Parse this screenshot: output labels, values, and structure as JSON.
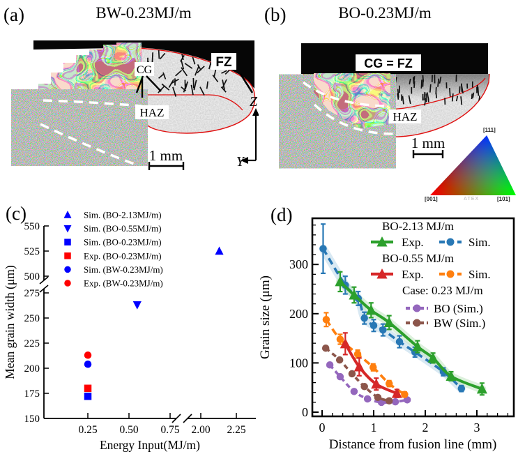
{
  "panel_a": {
    "label": "(a)",
    "title": "BW-0.23MJ/m",
    "cg": "CG",
    "fz": "FZ",
    "haz": "HAZ",
    "scale": "1 mm",
    "axis_z": "Z",
    "axis_y": "Y"
  },
  "panel_b": {
    "label": "(b)",
    "title": "BO-0.23MJ/m",
    "cg_fz": "CG = FZ",
    "haz": "HAZ",
    "scale": "1 mm",
    "ipf": {
      "top": "[111]",
      "bottom_left": "[001]",
      "bottom_right": "[101]",
      "watermark": "ATEX"
    }
  },
  "panel_c": {
    "label": "(c)"
  },
  "panel_d": {
    "label": "(d)"
  },
  "colors": {
    "sim_blue": "#0000ff",
    "exp_red": "#ff0000",
    "d_green": "#2ca02c",
    "d_blue": "#2878b5",
    "d_red": "#d62728",
    "d_orange": "#ff7f0e",
    "d_purple": "#9467bd",
    "d_brown": "#8c564b"
  },
  "chart_data": [
    {
      "type": "scatter",
      "title": "",
      "xlabel": "Energy Input(MJ/m)",
      "ylabel": "Mean grain width (μm)",
      "x_ticks": [
        0.25,
        0.5,
        0.75,
        2.0,
        2.25
      ],
      "x_tick_labels": [
        "0.25",
        "0.50",
        "0.75",
        "2.00",
        "2.25"
      ],
      "y_ticks": [
        150,
        175,
        200,
        225,
        250,
        275,
        500,
        525,
        550
      ],
      "axis_break_x": [
        0.75,
        2.0
      ],
      "axis_break_y": [
        275,
        500
      ],
      "grid": false,
      "legend_position": "upper-left",
      "series": [
        {
          "label": "Sim. (BO-2.13MJ/m)",
          "marker": "triangle-up",
          "color": "#0000ff",
          "x": 2.13,
          "y": 525
        },
        {
          "label": "Sim. (BO-0.55MJ/m)",
          "marker": "triangle-down",
          "color": "#0000ff",
          "x": 0.55,
          "y": 263
        },
        {
          "label": "Sim. (BO-0.23MJ/m)",
          "marker": "square",
          "color": "#0000ff",
          "x": 0.25,
          "y": 172
        },
        {
          "label": "Exp. (BO-0.23MJ/m)",
          "marker": "square",
          "color": "#ff0000",
          "x": 0.25,
          "y": 180
        },
        {
          "label": "Sim. (BW-0.23MJ/m)",
          "marker": "circle",
          "color": "#0000ff",
          "x": 0.25,
          "y": 204
        },
        {
          "label": "Exp. (BW-0.23MJ/m)",
          "marker": "circle",
          "color": "#ff0000",
          "x": 0.25,
          "y": 213
        }
      ]
    },
    {
      "type": "line",
      "title": "",
      "xlabel": "Distance from fusion line (mm)",
      "ylabel": "Grain size (μm)",
      "x_ticks": [
        0,
        1,
        2,
        3
      ],
      "y_ticks": [
        0,
        100,
        200,
        300
      ],
      "xlim": [
        -0.25,
        3.6
      ],
      "ylim": [
        0,
        395
      ],
      "grid": false,
      "legend_position": "upper-right",
      "legend_groups": [
        {
          "heading": "BO-2.13 MJ/m",
          "entries": [
            {
              "label": "Exp.",
              "series": "exp213"
            },
            {
              "label": "Sim.",
              "series": "sim213"
            }
          ]
        },
        {
          "heading": "BO-0.55 MJ/m",
          "entries": [
            {
              "label": "Exp.",
              "series": "exp055"
            },
            {
              "label": "Sim.",
              "series": "sim055"
            }
          ]
        },
        {
          "heading": "Case: 0.23 MJ/m",
          "entries": [
            {
              "label": "BO (Sim.)",
              "series": "bo023"
            },
            {
              "label": "BW (Sim.)",
              "series": "bw023"
            }
          ]
        }
      ],
      "series": [
        {
          "id": "bo023",
          "name": "BO (Sim.) 0.23 MJ/m",
          "color": "#9467bd",
          "style": "short-dash",
          "marker": "circle",
          "x": [
            0.15,
            0.35,
            0.62,
            0.88,
            1.15,
            1.42,
            1.65
          ],
          "y": [
            96,
            72,
            42,
            27,
            20,
            21,
            25
          ],
          "yerr": null,
          "band": null
        },
        {
          "id": "bw023",
          "name": "BW (Sim.) 0.23 MJ/m",
          "color": "#8c564b",
          "style": "short-dash",
          "marker": "circle",
          "x": [
            0.07,
            0.34,
            0.58,
            0.82,
            1.08,
            1.3
          ],
          "y": [
            130,
            106,
            78,
            52,
            30,
            23
          ],
          "yerr": null,
          "band": null
        },
        {
          "id": "sim055",
          "name": "Sim. BO-0.55 MJ/m",
          "color": "#ff7f0e",
          "style": "dashed",
          "marker": "circle",
          "x": [
            0.08,
            0.35,
            0.69,
            0.99,
            1.3,
            1.6
          ],
          "y": [
            188,
            148,
            118,
            91,
            58,
            36
          ],
          "yerr": [
            14,
            10,
            8,
            7,
            6,
            5
          ],
          "band": null
        },
        {
          "id": "exp055",
          "name": "Exp. BO-0.55 MJ/m",
          "color": "#d62728",
          "style": "solid",
          "marker": "triangle-up",
          "x": [
            0.45,
            0.72,
            1.05,
            1.45
          ],
          "y": [
            139,
            92,
            57,
            38
          ],
          "yerr": [
            22,
            18,
            12,
            8
          ],
          "band": null
        },
        {
          "id": "sim213",
          "name": "Sim. BO-2.13 MJ/m",
          "color": "#2878b5",
          "style": "dashed",
          "marker": "circle",
          "x": [
            0.02,
            0.45,
            0.7,
            0.82,
            1.0,
            1.18,
            1.5,
            1.8,
            2.35,
            2.7
          ],
          "y": [
            332,
            258,
            231,
            191,
            176,
            167,
            143,
            122,
            82,
            48
          ],
          "yerr": [
            50,
            18,
            14,
            12,
            12,
            12,
            12,
            10,
            8,
            6
          ],
          "band": "#b9d7ea"
        },
        {
          "id": "exp213",
          "name": "Exp. BO-2.13 MJ/m",
          "color": "#2ca02c",
          "style": "solid",
          "marker": "triangle-up",
          "x": [
            0.35,
            0.62,
            0.95,
            1.3,
            1.85,
            2.15,
            2.5,
            3.1
          ],
          "y": [
            265,
            238,
            207,
            182,
            133,
            110,
            73,
            47
          ],
          "yerr": [
            20,
            16,
            15,
            14,
            12,
            10,
            9,
            12
          ],
          "band": "#bfe3bf"
        }
      ]
    }
  ]
}
